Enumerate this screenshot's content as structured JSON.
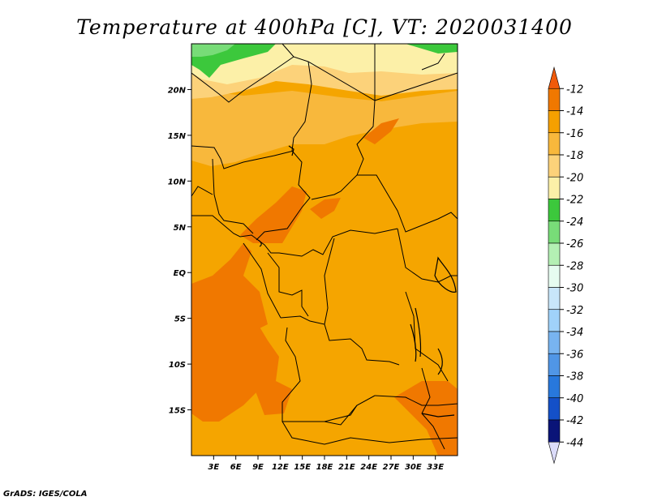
{
  "title": "Temperature at 400hPa [C], VT: 2020031400",
  "credit": "GrADS: IGES/COLA",
  "map": {
    "lon_range": [
      0,
      36
    ],
    "lat_range": [
      -20,
      25
    ],
    "lon_ticks": [
      {
        "lon": 3,
        "label": "3E"
      },
      {
        "lon": 6,
        "label": "6E"
      },
      {
        "lon": 9,
        "label": "9E"
      },
      {
        "lon": 12,
        "label": "12E"
      },
      {
        "lon": 15,
        "label": "15E"
      },
      {
        "lon": 18,
        "label": "18E"
      },
      {
        "lon": 21,
        "label": "21E"
      },
      {
        "lon": 24,
        "label": "24E"
      },
      {
        "lon": 27,
        "label": "27E"
      },
      {
        "lon": 30,
        "label": "30E"
      },
      {
        "lon": 33,
        "label": "33E"
      }
    ],
    "lat_ticks": [
      {
        "lat": 20,
        "label": "20N"
      },
      {
        "lat": 15,
        "label": "15N"
      },
      {
        "lat": 10,
        "label": "10N"
      },
      {
        "lat": 5,
        "label": "5N"
      },
      {
        "lat": 0,
        "label": "EQ"
      },
      {
        "lat": -5,
        "label": "5S"
      },
      {
        "lat": -10,
        "label": "10S"
      },
      {
        "lat": -15,
        "label": "15S"
      }
    ],
    "background_color": "#f5a500"
  },
  "colorbar": {
    "labels": [
      "-12",
      "-14",
      "-16",
      "-18",
      "-20",
      "-22",
      "-24",
      "-26",
      "-28",
      "-30",
      "-32",
      "-34",
      "-36",
      "-38",
      "-40",
      "-42",
      "-44"
    ],
    "colors_top_to_bottom": [
      "#f05a0a",
      "#f07800",
      "#f5a000",
      "#f8b83c",
      "#fcd27a",
      "#fcf0a8",
      "#3cc83c",
      "#78dc78",
      "#b4f0b4",
      "#e6fcf0",
      "#c8e6fa",
      "#a0d2fa",
      "#78b4f0",
      "#5096e6",
      "#2878dc",
      "#1450c8",
      "#0a1478",
      "#dcdcfa"
    ]
  }
}
